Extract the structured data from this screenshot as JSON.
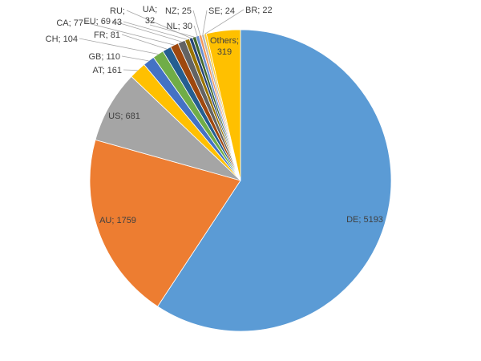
{
  "chart_data": {
    "type": "pie",
    "title": "",
    "slices": [
      {
        "label": "DE",
        "value": 5193,
        "text": "DE; 5193",
        "color": "#5B9BD5"
      },
      {
        "label": "AU",
        "value": 1759,
        "text": "AU; 1759",
        "color": "#ED7D31"
      },
      {
        "label": "US",
        "value": 681,
        "text": "US; 681",
        "color": "#A5A5A5"
      },
      {
        "label": "AT",
        "value": 161,
        "text": "AT; 161",
        "color": "#FFC000"
      },
      {
        "label": "GB",
        "value": 110,
        "text": "GB; 110",
        "color": "#4472C4"
      },
      {
        "label": "CH",
        "value": 104,
        "text": "CH; 104",
        "color": "#70AD47"
      },
      {
        "label": "FR",
        "value": 81,
        "text": "FR; 81",
        "color": "#255E91"
      },
      {
        "label": "CA",
        "value": 77,
        "text": "CA; 77",
        "color": "#9E480E"
      },
      {
        "label": "EU",
        "value": 69,
        "text": "EU; 69",
        "color": "#636363"
      },
      {
        "label": "",
        "value": 43,
        "text": "43",
        "color": "#997300"
      },
      {
        "label": "RU",
        "value": 32,
        "text": "RU;",
        "color": "#264478"
      },
      {
        "label": "UA",
        "value": 32,
        "text": "UA;\n32",
        "color": "#43682B"
      },
      {
        "label": "NL",
        "value": 30,
        "text": "NL; 30",
        "color": "#698ED0"
      },
      {
        "label": "NZ",
        "value": 25,
        "text": "NZ; 25",
        "color": "#F1975A"
      },
      {
        "label": "SE",
        "value": 24,
        "text": "SE; 24",
        "color": "#B7B7B7"
      },
      {
        "label": "BR",
        "value": 22,
        "text": "BR; 22",
        "color": "#FFCD33"
      },
      {
        "label": "Others",
        "value": 319,
        "text": "Others;\n319",
        "color": "#FFC000"
      }
    ]
  }
}
